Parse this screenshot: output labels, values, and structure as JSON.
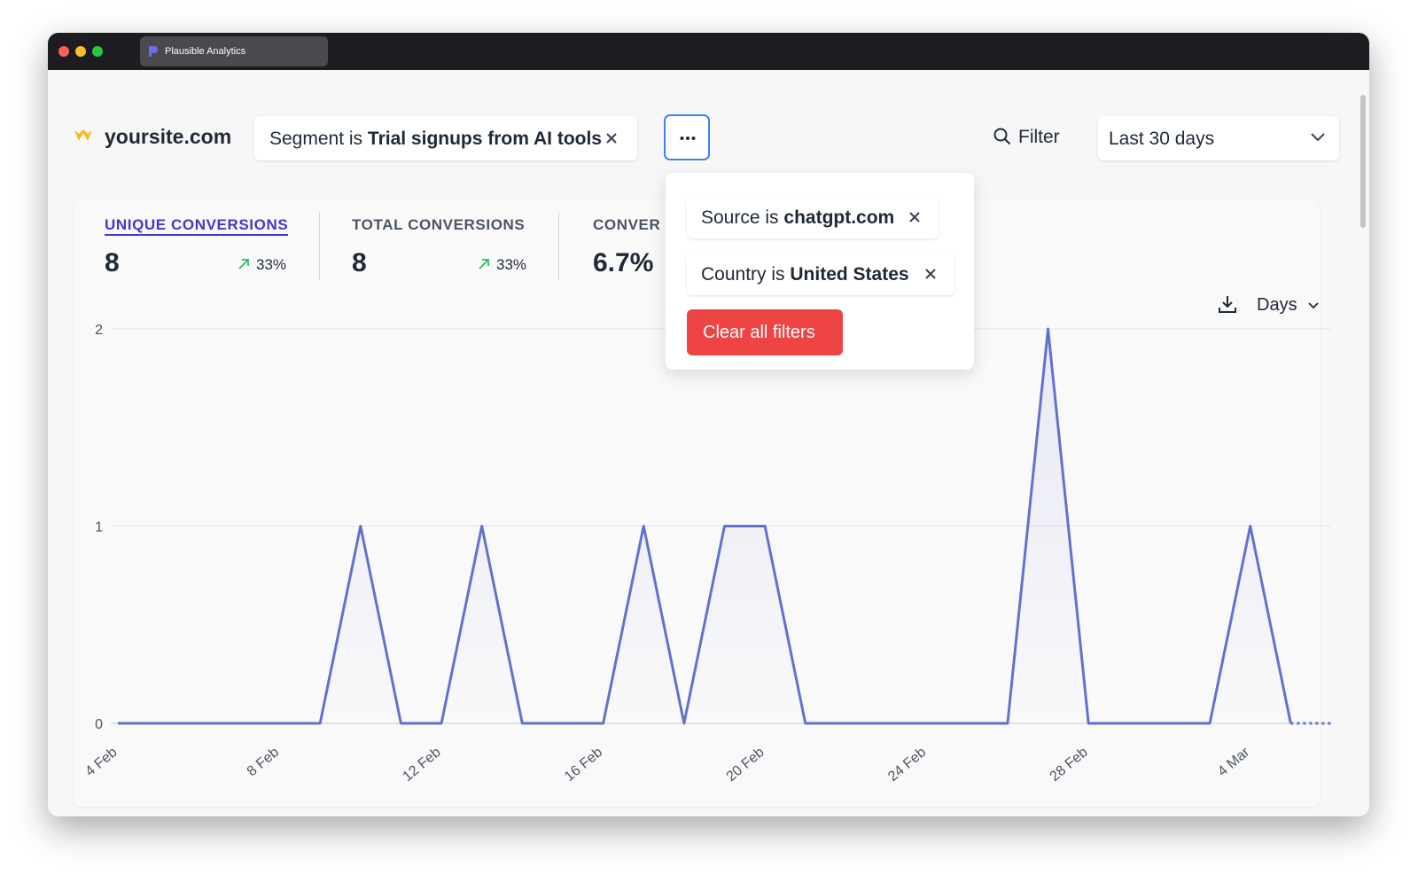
{
  "browser": {
    "tab_title": "Plausible Analytics"
  },
  "header": {
    "site": "yoursite.com",
    "segment_filter": {
      "prefix": "Segment is",
      "value": "Trial signups from AI tools"
    },
    "filter_button": "Filter",
    "period": "Last 30 days"
  },
  "dropdown": {
    "filters": [
      {
        "prefix": "Source is",
        "value": "chatgpt.com"
      },
      {
        "prefix": "Country is",
        "value": "United States"
      }
    ],
    "clear_button": "Clear all filters"
  },
  "metrics": [
    {
      "label": "UNIQUE CONVERSIONS",
      "value": "8",
      "change": "33%"
    },
    {
      "label": "TOTAL CONVERSIONS",
      "value": "8",
      "change": "33%"
    },
    {
      "label": "CONVER",
      "value": "6.7%"
    }
  ],
  "chart_controls": {
    "interval": "Days"
  },
  "chart_data": {
    "type": "line",
    "categories": [
      "4 Feb",
      null,
      null,
      null,
      "8 Feb",
      null,
      null,
      null,
      "12 Feb",
      null,
      null,
      null,
      "16 Feb",
      null,
      null,
      null,
      "20 Feb",
      null,
      null,
      null,
      "24 Feb",
      null,
      null,
      null,
      "28 Feb",
      null,
      null,
      null,
      "4 Mar",
      null,
      null
    ],
    "series": [
      {
        "color": "#6272cc",
        "values": [
          0,
          0,
          0,
          0,
          0,
          0,
          1,
          0,
          0,
          1,
          0,
          0,
          0,
          1,
          0,
          1,
          1,
          0,
          0,
          0,
          0,
          0,
          0,
          2,
          0,
          0,
          0,
          0,
          1,
          0,
          0
        ]
      }
    ],
    "ylim": [
      0,
      2
    ],
    "yticks": [
      0,
      1,
      2
    ],
    "grid": true
  }
}
